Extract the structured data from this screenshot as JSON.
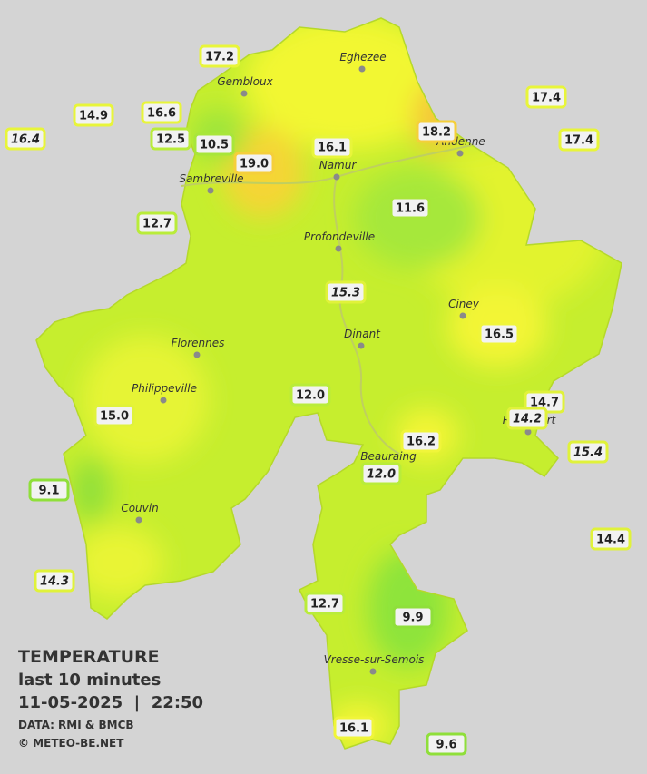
{
  "legend": {
    "title": "TEMPERATURE",
    "period": "last 10 minutes",
    "datetime": "11-05-2025  |  22:50",
    "source": "DATA: RMI & BMCB",
    "copyright": "© METEO-BE.NET"
  },
  "cities": [
    "Eghezee",
    "Gembloux",
    "Andenne",
    "Namur",
    "Sambreville",
    "Profondeville",
    "Ciney",
    "Dinant",
    "Florennes",
    "Philippeville",
    "Rochefort",
    "Beauraing",
    "Couvin",
    "Vresse-sur-Semois"
  ],
  "stations": [
    {
      "value": "17.2"
    },
    {
      "value": "14.9"
    },
    {
      "value": "16.4",
      "italic": true
    },
    {
      "value": "16.6"
    },
    {
      "value": "12.5"
    },
    {
      "value": "10.5"
    },
    {
      "value": "19.0"
    },
    {
      "value": "16.1"
    },
    {
      "value": "18.2"
    },
    {
      "value": "17.4"
    },
    {
      "value": "17.4"
    },
    {
      "value": "12.7"
    },
    {
      "value": "11.6"
    },
    {
      "value": "15.3",
      "italic": true
    },
    {
      "value": "16.5"
    },
    {
      "value": "12.0"
    },
    {
      "value": "14.7"
    },
    {
      "value": "14.2",
      "italic": true
    },
    {
      "value": "15.0"
    },
    {
      "value": "16.2"
    },
    {
      "value": "12.0",
      "italic": true
    },
    {
      "value": "15.4",
      "italic": true
    },
    {
      "value": "9.1"
    },
    {
      "value": "14.4"
    },
    {
      "value": "14.3",
      "italic": true
    },
    {
      "value": "12.7"
    },
    {
      "value": "9.9"
    },
    {
      "value": "16.1"
    },
    {
      "value": "9.6"
    }
  ]
}
